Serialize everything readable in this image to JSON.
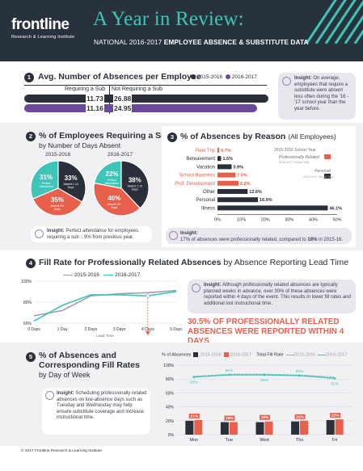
{
  "header": {
    "logo_word": "frontline",
    "logo_sub": "Research & Learning Institute",
    "title": "A Year in Review:",
    "subtitle_light": "NATIONAL 2016-2017",
    "subtitle_bold": "EMPLOYEE ABSENCE & SUBSTITUTE DATA"
  },
  "colors": {
    "navy": "#2b2f3a",
    "purple": "#6b4a9b",
    "teal": "#3ec5b8",
    "coral": "#e8604c",
    "gray": "#e9e6ee"
  },
  "s1": {
    "num": "1",
    "title": "Avg. Number of Absences per Employee",
    "legend": [
      "2015-2016",
      "2016-2017"
    ],
    "col_requiring": "Requiring a Sub",
    "col_not": "Not Requiring a Sub",
    "rows": [
      {
        "req": "11.73",
        "not": "26.88"
      },
      {
        "req": "11.16",
        "not": "24.95"
      }
    ],
    "insight_label": "Insight:",
    "insight": "On average, employees that require a substitute were absent less often during the '16 - '17 school year than the year before."
  },
  "s2": {
    "num": "2",
    "title": "% of Employees Requiring a Sub",
    "subtitle": "by Number of Days Absent",
    "year_a": "2015-2016",
    "year_b": "2016-2017",
    "pie_a": [
      {
        "pct": "31%",
        "label": "Perfect Attendance"
      },
      {
        "pct": "33%",
        "label": "Absent 1-10 Days"
      },
      {
        "pct": "35%",
        "label": "Absent 10+ Days"
      }
    ],
    "pie_b": [
      {
        "pct": "22%",
        "label": "Perfect Attendance"
      },
      {
        "pct": "38%",
        "label": "Absent 1-10 Days"
      },
      {
        "pct": "40%",
        "label": "Absent 10+ Days"
      }
    ],
    "insight_label": "Insight:",
    "insight": "Perfect attendance for employees requiring a sub ↓ 9% from previous year."
  },
  "s3": {
    "num": "3",
    "title": "% of Absences by Reason",
    "title_suffix": "(All Employees)",
    "legend_title": "2015-2016 School Year",
    "legend_a": "Professionally Related",
    "legend_a_sub": "2016-2017 School Year",
    "legend_b": "Personal",
    "legend_b_sub": "2016-2017 School Year",
    "ticks": [
      "0%",
      "10%",
      "20%",
      "30%",
      "40%",
      "50%"
    ],
    "insight_label": "Insight:",
    "insight_a": "17% of absences were professionally related, compared to ",
    "insight_b": "18%",
    "insight_c": " in 2015-16."
  },
  "chart_data": [
    {
      "type": "bar",
      "title": "% of Absences by Reason",
      "categories": [
        "Field Trip",
        "Bereavement",
        "Vacation",
        "School Business",
        "Prof. Development",
        "Other",
        "Personal",
        "Illness"
      ],
      "values": [
        0.7,
        1.5,
        5.9,
        7.5,
        8.8,
        12.6,
        16.9,
        46.1
      ],
      "labels": [
        "0.7%",
        "1.5%",
        "5.9%",
        "7.5%",
        "8.8%",
        "12.6%",
        "16.9%",
        "46.1%"
      ],
      "ylim": [
        0,
        50
      ]
    },
    {
      "type": "line",
      "title": "Fill Rate for Professionally Related Absences",
      "xlabel": "Lead Time",
      "x": [
        "0 Days",
        "1 Day",
        "2 Days",
        "3 Days",
        "4 Days",
        "5 Days"
      ],
      "ylim": [
        60,
        100
      ],
      "yticks": [
        "100%",
        "80%",
        "60%"
      ],
      "series": [
        {
          "name": "2015-2016",
          "values": [
            67,
            72,
            86,
            88,
            89,
            91
          ]
        },
        {
          "name": "2016-2017",
          "values": [
            62,
            77,
            87,
            87,
            86,
            90
          ]
        }
      ]
    },
    {
      "type": "bar",
      "title": "% of Absences",
      "categories": [
        "Mon",
        "Tue",
        "Wed",
        "Thu",
        "Fri"
      ],
      "series": [
        {
          "name": "2015-2016",
          "values": [
            20,
            18,
            18,
            19,
            21
          ]
        },
        {
          "name": "2016-2017",
          "values": [
            21,
            18,
            19,
            20,
            22
          ]
        }
      ],
      "labels": [
        "21%",
        "18%",
        "19%",
        "20%",
        "22%"
      ],
      "ylim": [
        0,
        100
      ]
    },
    {
      "type": "line",
      "title": "Total Fill Rate",
      "categories": [
        "Mon",
        "Tue",
        "Wed",
        "Thu",
        "Fri"
      ],
      "series": [
        {
          "name": "2015-2016",
          "values": [
            84,
            87,
            87,
            86,
            83
          ]
        },
        {
          "name": "2016-2017",
          "values": [
            83,
            86,
            86,
            85,
            81
          ]
        }
      ],
      "labels": [
        "83%",
        "86%",
        "86%",
        "85%",
        "81%"
      ],
      "ylim": [
        0,
        100
      ]
    }
  ],
  "s4": {
    "num": "4",
    "title": "Fill Rate for Professionally Related Absences",
    "title_suffix": "by Absence Reporting Lead Time",
    "legend": [
      "2015-2016",
      "2016-2017"
    ],
    "insight_label": "Insight:",
    "insight": "Although professionally related absences are typically planned weeks in advance, over 30% of these absences were reported within 4 days of the event. This results in lower fill rates and additional lost instructional time.",
    "callout_a": "30.5% OF PROFESSIONALLY RELATED",
    "callout_b": "ABSENCES WERE REPORTED WITHIN 4 DAYS"
  },
  "s5": {
    "num": "5",
    "title_a": "% of Absences and",
    "title_b": "Corresponding Fill Rates",
    "title_c": "by Day of Week",
    "legend_absences": "% of Absences",
    "legend_fill": "Total Fill Rate",
    "years": [
      "2015-2016",
      "2016-2017"
    ],
    "yticks": [
      "100%",
      "80%",
      "60%",
      "40%",
      "20%",
      "0%"
    ],
    "insight_label": "Insight:",
    "insight": "Scheduling professionally related absences on low-absence days such as Tuesday and Wednesday may help ensure substitute coverage and increase instructional time."
  },
  "footer": "© 2017 Frontline Research & Learning Institute"
}
